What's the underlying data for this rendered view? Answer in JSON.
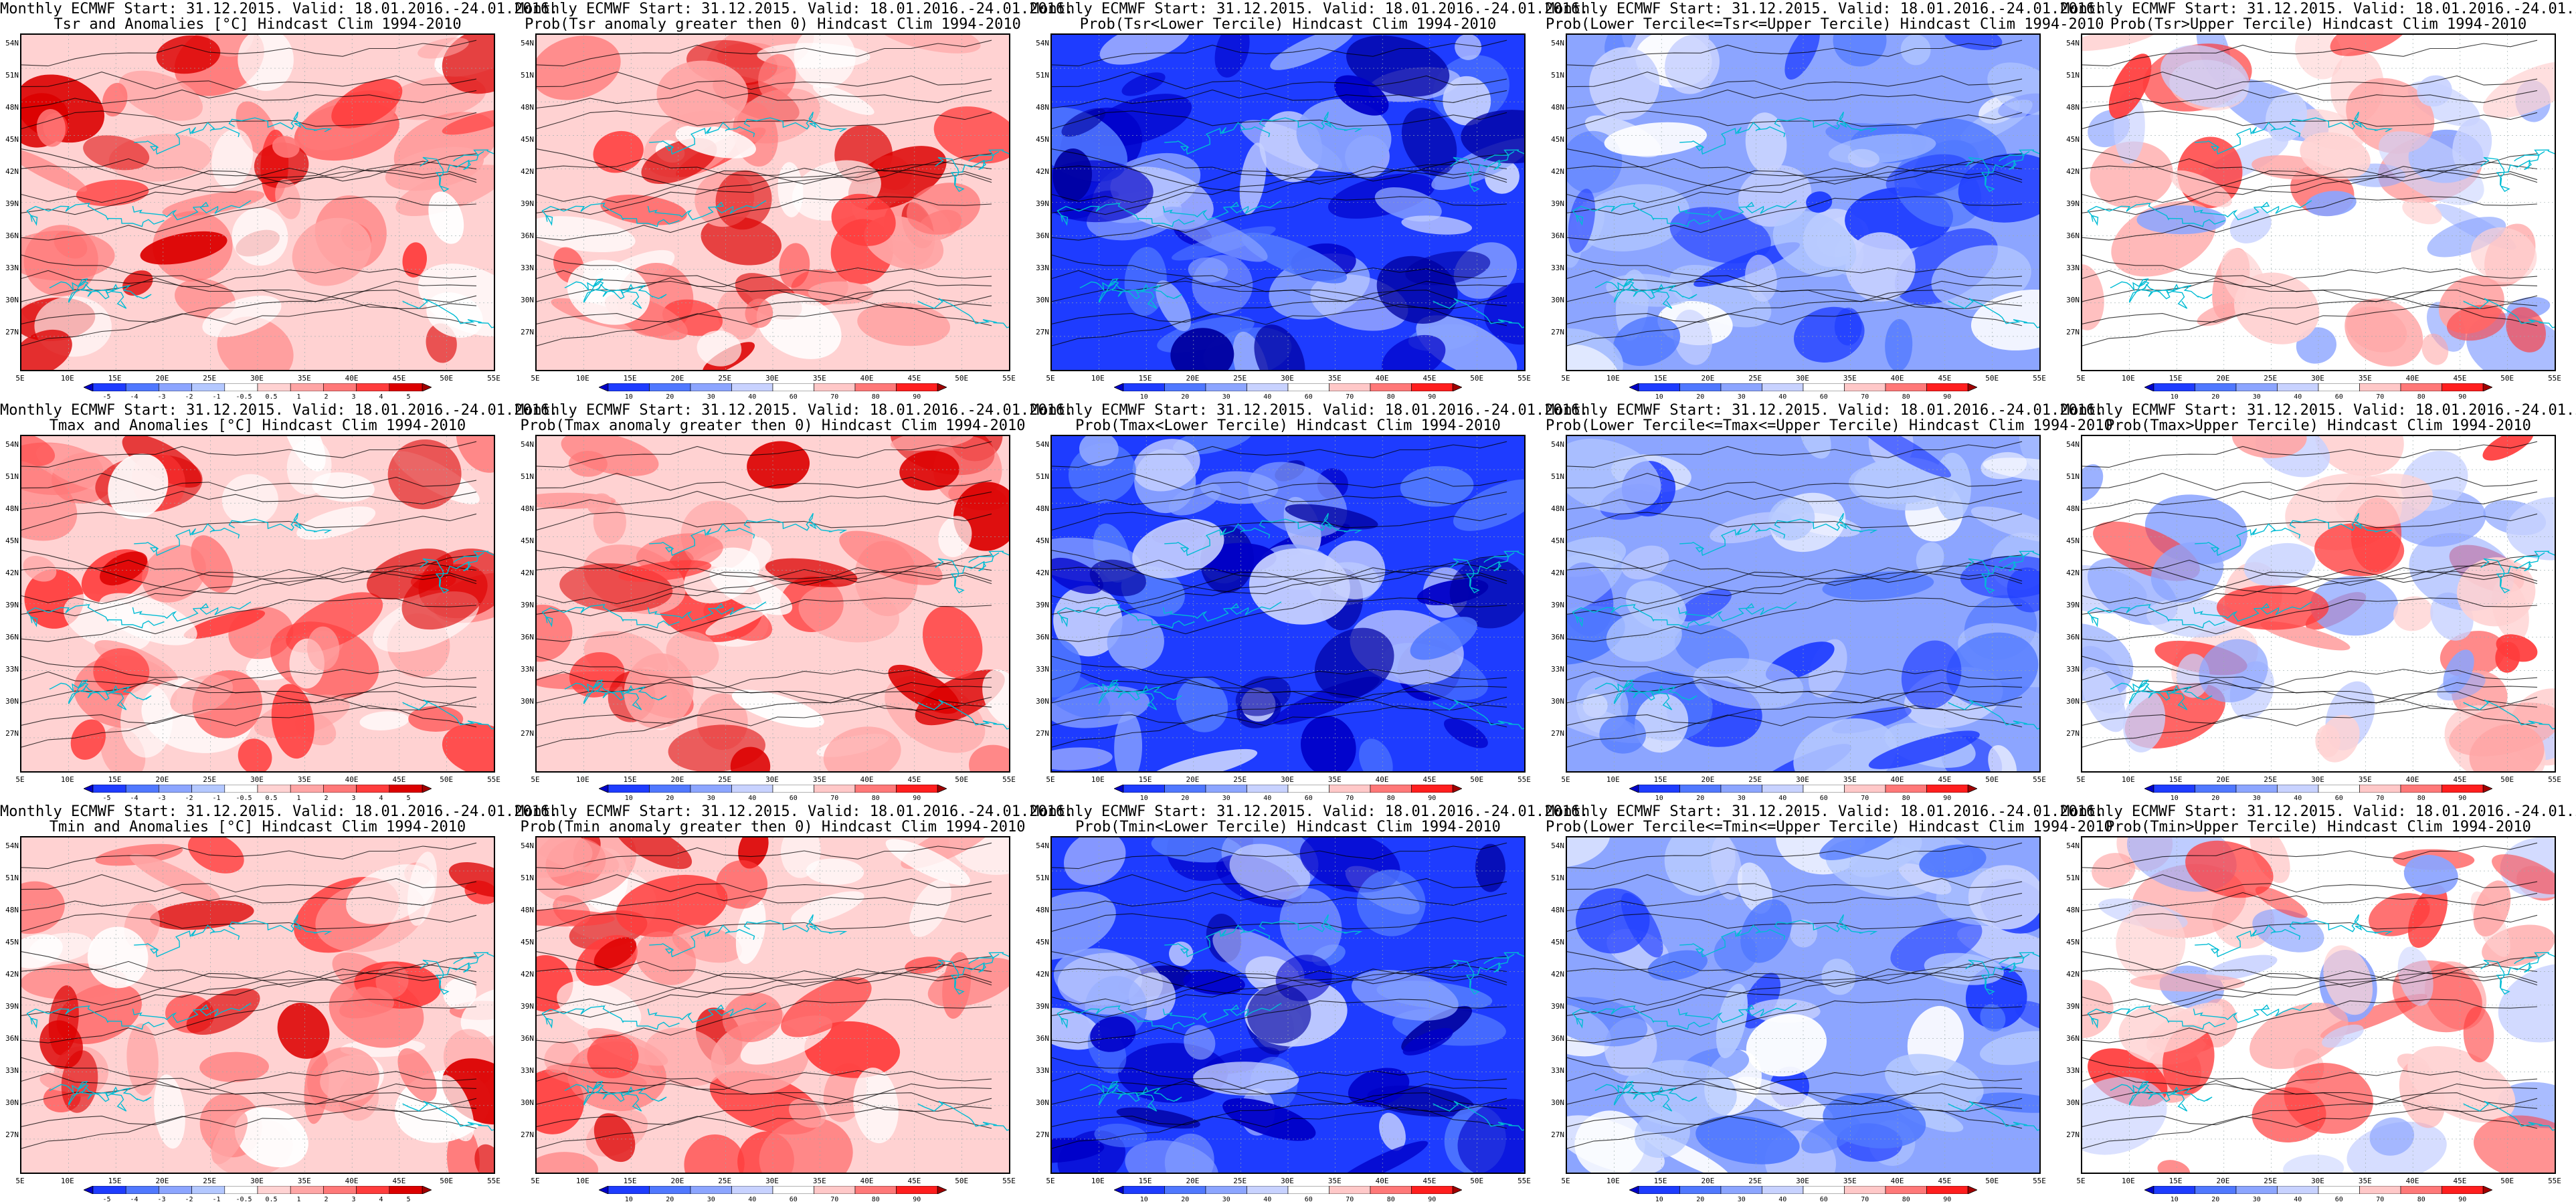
{
  "header_line": "Monthly ECMWF Start: 31.12.2015. Valid: 18.01.2016.-24.01.2016.",
  "lat_labels": [
    "54N",
    "51N",
    "48N",
    "45N",
    "42N",
    "39N",
    "36N",
    "33N",
    "30N",
    "27N"
  ],
  "lon_labels": [
    "5E",
    "10E",
    "15E",
    "20E",
    "25E",
    "30E",
    "35E",
    "40E",
    "45E",
    "50E",
    "55E"
  ],
  "anomaly_colorbar_labels": [
    "-5",
    "-4",
    "-3",
    "-2",
    "-1",
    "-0.5",
    "0.5",
    "1",
    "2",
    "3",
    "4",
    "5"
  ],
  "prob_colorbar_labels": [
    "10",
    "20",
    "30",
    "40",
    "60",
    "70",
    "80",
    "90"
  ],
  "colors": {
    "anomaly_scale": [
      "#0000c8",
      "#1e3cff",
      "#5078ff",
      "#8ca5ff",
      "#b4c8ff",
      "#ffffff",
      "#ffd2d2",
      "#ffa5a5",
      "#ff7878",
      "#ff3c3c",
      "#dc0000",
      "#a00000"
    ],
    "prob_scale": [
      "#0000c8",
      "#1e3cff",
      "#5078ff",
      "#8ca5ff",
      "#c8d2ff",
      "#ffffff",
      "#ffc8c8",
      "#ff7878",
      "#ff1e1e",
      "#a00000"
    ],
    "coastline": "#00bcd4",
    "contour": "#000000"
  },
  "panels": [
    {
      "title2": "Tsr and Anomalies [°C] Hindcast Clim 1994-2010",
      "scale": "anomaly",
      "tone": "red"
    },
    {
      "title2": "Prob(Tsr anomaly greater then 0) Hindcast Clim 1994-2010",
      "scale": "prob",
      "tone": "red"
    },
    {
      "title2": "Prob(Tsr<Lower Tercile) Hindcast Clim 1994-2010",
      "scale": "prob",
      "tone": "blue"
    },
    {
      "title2": "Prob(Lower Tercile<=Tsr<=Upper Tercile) Hindcast Clim 1994-2010",
      "scale": "prob",
      "tone": "lightblue"
    },
    {
      "title2": "Prob(Tsr>Upper Tercile) Hindcast Clim 1994-2010",
      "scale": "prob",
      "tone": "white"
    },
    {
      "title2": "Tmax and Anomalies [°C] Hindcast Clim 1994-2010",
      "scale": "anomaly",
      "tone": "red"
    },
    {
      "title2": "Prob(Tmax anomaly greater then 0) Hindcast Clim 1994-2010",
      "scale": "prob",
      "tone": "red"
    },
    {
      "title2": "Prob(Tmax<Lower Tercile) Hindcast Clim 1994-2010",
      "scale": "prob",
      "tone": "blue"
    },
    {
      "title2": "Prob(Lower Tercile<=Tmax<=Upper Tercile) Hindcast Clim 1994-2010",
      "scale": "prob",
      "tone": "lightblue"
    },
    {
      "title2": "Prob(Tmax>Upper Tercile) Hindcast Clim 1994-2010",
      "scale": "prob",
      "tone": "white"
    },
    {
      "title2": "Tmin and Anomalies [°C] Hindcast Clim 1994-2010",
      "scale": "anomaly",
      "tone": "red"
    },
    {
      "title2": "Prob(Tmin anomaly greater then 0) Hindcast Clim 1994-2010",
      "scale": "prob",
      "tone": "red"
    },
    {
      "title2": "Prob(Tmin<Lower Tercile) Hindcast Clim 1994-2010",
      "scale": "prob",
      "tone": "blue"
    },
    {
      "title2": "Prob(Lower Tercile<=Tmin<=Upper Tercile) Hindcast Clim 1994-2010",
      "scale": "prob",
      "tone": "lightblue"
    },
    {
      "title2": "Prob(Tmin>Upper Tercile) Hindcast Clim 1994-2010",
      "scale": "prob",
      "tone": "white"
    }
  ]
}
